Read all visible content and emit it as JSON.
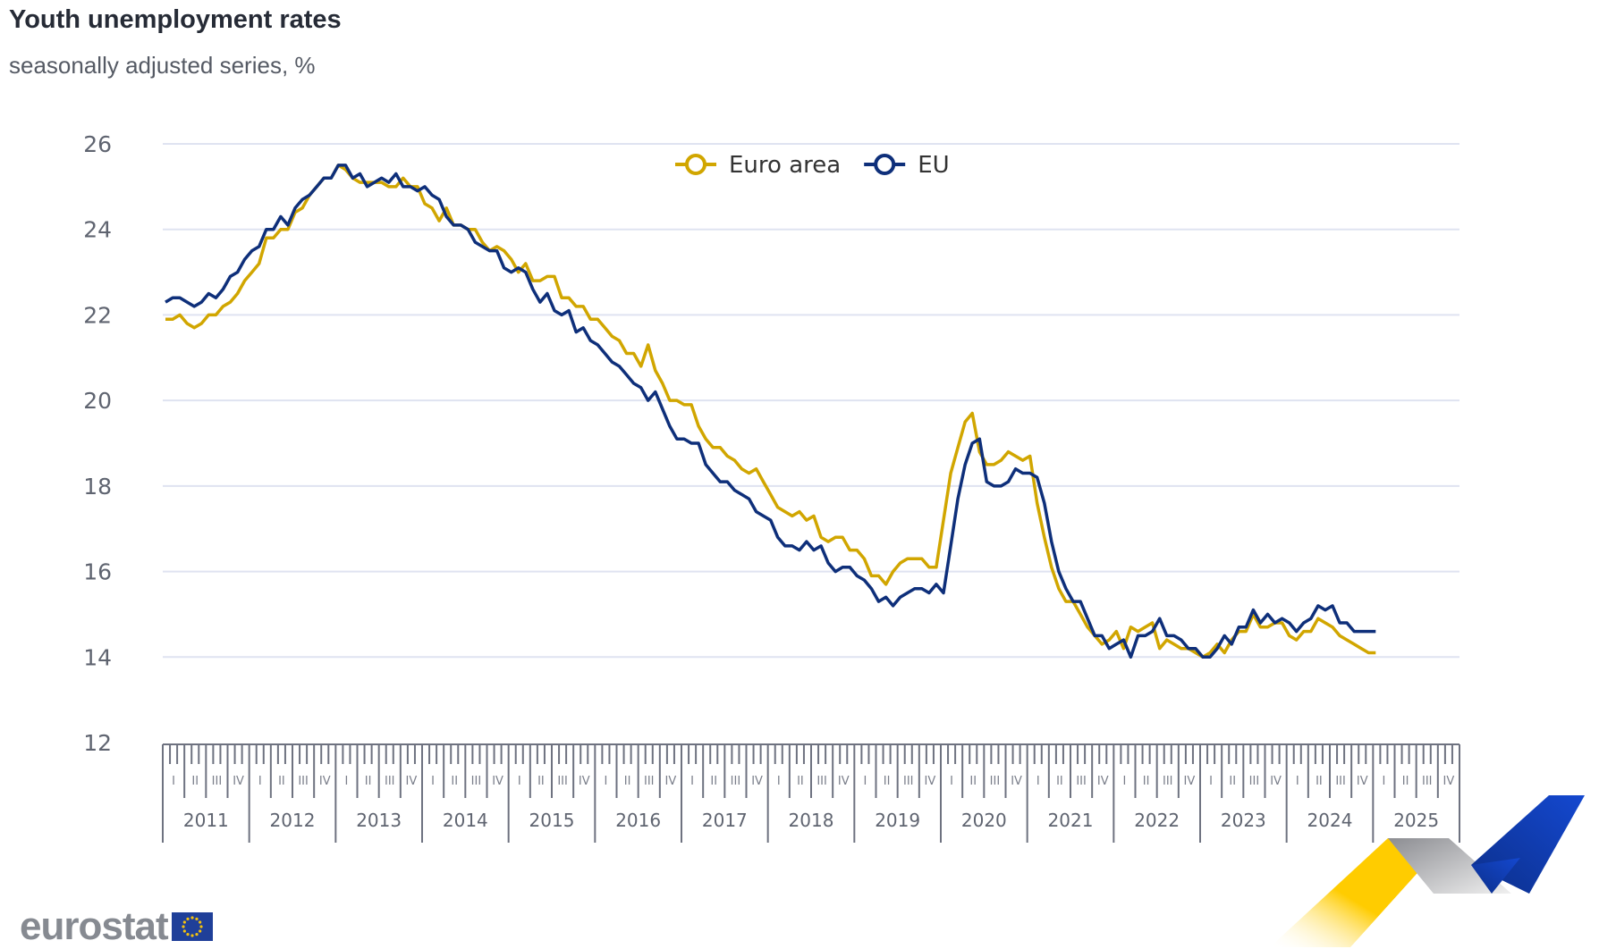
{
  "header": {
    "title": "Youth unemployment rates",
    "subtitle": "seasonally adjusted series, %"
  },
  "logo": {
    "text": "eurostat"
  },
  "chart_data": {
    "type": "line",
    "title": "Youth unemployment rates",
    "subtitle": "seasonally adjusted series, %",
    "frequency": "monthly",
    "x_start": "2011-01",
    "x_end": "2025-01",
    "xlabel": "",
    "ylabel": "",
    "ylim": [
      12,
      26
    ],
    "yticks": [
      "12",
      "14",
      "16",
      "18",
      "20",
      "22",
      "24",
      "26"
    ],
    "quarter_labels": [
      "I",
      "II",
      "III",
      "IV"
    ],
    "year_labels": [
      "2011",
      "2012",
      "2013",
      "2014",
      "2015",
      "2016",
      "2017",
      "2018",
      "2019",
      "2020",
      "2021",
      "2022",
      "2023",
      "2024",
      "2025"
    ],
    "grid": true,
    "legend_position": "top-center",
    "series": [
      {
        "name": "Euro area",
        "color": "#d1a600",
        "values": [
          21.9,
          21.9,
          22.0,
          21.8,
          21.7,
          21.8,
          22.0,
          22.0,
          22.2,
          22.3,
          22.5,
          22.8,
          23.0,
          23.2,
          23.8,
          23.8,
          24.0,
          24.0,
          24.4,
          24.5,
          24.8,
          25.0,
          25.2,
          25.2,
          25.5,
          25.4,
          25.2,
          25.1,
          25.1,
          25.1,
          25.1,
          25.0,
          25.0,
          25.2,
          25.0,
          25.0,
          24.6,
          24.5,
          24.2,
          24.5,
          24.1,
          24.1,
          24.0,
          24.0,
          23.7,
          23.5,
          23.6,
          23.5,
          23.3,
          23.0,
          23.2,
          22.8,
          22.8,
          22.9,
          22.9,
          22.4,
          22.4,
          22.2,
          22.2,
          21.9,
          21.9,
          21.7,
          21.5,
          21.4,
          21.1,
          21.1,
          20.8,
          21.3,
          20.7,
          20.4,
          20.0,
          20.0,
          19.9,
          19.9,
          19.4,
          19.1,
          18.9,
          18.9,
          18.7,
          18.6,
          18.4,
          18.3,
          18.4,
          18.1,
          17.8,
          17.5,
          17.4,
          17.3,
          17.4,
          17.2,
          17.3,
          16.8,
          16.7,
          16.8,
          16.8,
          16.5,
          16.5,
          16.3,
          15.9,
          15.9,
          15.7,
          16.0,
          16.2,
          16.3,
          16.3,
          16.3,
          16.1,
          16.1,
          17.2,
          18.3,
          18.9,
          19.5,
          19.7,
          18.8,
          18.5,
          18.5,
          18.6,
          18.8,
          18.7,
          18.6,
          18.7,
          17.6,
          16.8,
          16.1,
          15.6,
          15.3,
          15.3,
          15.0,
          14.7,
          14.5,
          14.3,
          14.4,
          14.6,
          14.2,
          14.7,
          14.6,
          14.7,
          14.8,
          14.2,
          14.4,
          14.3,
          14.2,
          14.2,
          14.1,
          14.0,
          14.1,
          14.3,
          14.1,
          14.4,
          14.6,
          14.6,
          15.0,
          14.7,
          14.7,
          14.8,
          14.8,
          14.5,
          14.4,
          14.6,
          14.6,
          14.9,
          14.8,
          14.7,
          14.5,
          14.4,
          14.3,
          14.2,
          14.1,
          14.1
        ]
      },
      {
        "name": "EU",
        "color": "#0e2f7a",
        "values": [
          22.3,
          22.4,
          22.4,
          22.3,
          22.2,
          22.3,
          22.5,
          22.4,
          22.6,
          22.9,
          23.0,
          23.3,
          23.5,
          23.6,
          24.0,
          24.0,
          24.3,
          24.1,
          24.5,
          24.7,
          24.8,
          25.0,
          25.2,
          25.2,
          25.5,
          25.5,
          25.2,
          25.3,
          25.0,
          25.1,
          25.2,
          25.1,
          25.3,
          25.0,
          25.0,
          24.9,
          25.0,
          24.8,
          24.7,
          24.3,
          24.1,
          24.1,
          24.0,
          23.7,
          23.6,
          23.5,
          23.5,
          23.1,
          23.0,
          23.1,
          23.0,
          22.6,
          22.3,
          22.5,
          22.1,
          22.0,
          22.1,
          21.6,
          21.7,
          21.4,
          21.3,
          21.1,
          20.9,
          20.8,
          20.6,
          20.4,
          20.3,
          20.0,
          20.2,
          19.8,
          19.4,
          19.1,
          19.1,
          19.0,
          19.0,
          18.5,
          18.3,
          18.1,
          18.1,
          17.9,
          17.8,
          17.7,
          17.4,
          17.3,
          17.2,
          16.8,
          16.6,
          16.6,
          16.5,
          16.7,
          16.5,
          16.6,
          16.2,
          16.0,
          16.1,
          16.1,
          15.9,
          15.8,
          15.6,
          15.3,
          15.4,
          15.2,
          15.4,
          15.5,
          15.6,
          15.6,
          15.5,
          15.7,
          15.5,
          16.6,
          17.7,
          18.5,
          19.0,
          19.1,
          18.1,
          18.0,
          18.0,
          18.1,
          18.4,
          18.3,
          18.3,
          18.2,
          17.6,
          16.7,
          16.0,
          15.6,
          15.3,
          15.3,
          14.9,
          14.5,
          14.5,
          14.2,
          14.3,
          14.4,
          14.0,
          14.5,
          14.5,
          14.6,
          14.9,
          14.5,
          14.5,
          14.4,
          14.2,
          14.2,
          14.0,
          14.0,
          14.2,
          14.5,
          14.3,
          14.7,
          14.7,
          15.1,
          14.8,
          15.0,
          14.8,
          14.9,
          14.8,
          14.6,
          14.8,
          14.9,
          15.2,
          15.1,
          15.2,
          14.8,
          14.8,
          14.6,
          14.6,
          14.6,
          14.6
        ]
      }
    ]
  }
}
